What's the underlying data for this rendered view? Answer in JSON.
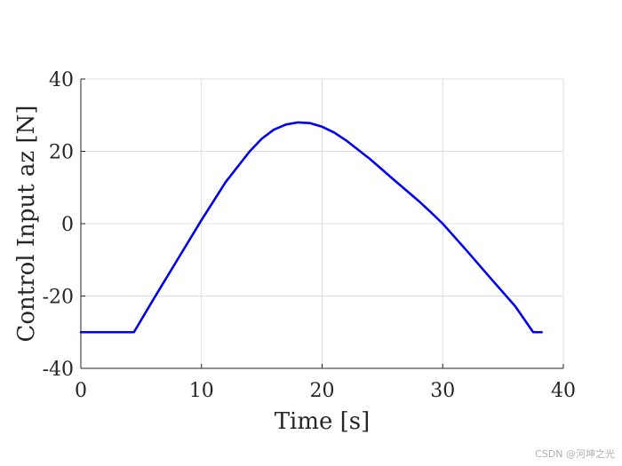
{
  "chart_data": {
    "type": "line",
    "xlabel": "Time [s]",
    "ylabel": "Control Input az [N]",
    "xlim": [
      0,
      40
    ],
    "ylim": [
      -40,
      40
    ],
    "xticks": [
      0,
      10,
      20,
      30,
      40
    ],
    "yticks": [
      -40,
      -20,
      0,
      20,
      40
    ],
    "grid": true,
    "series": [
      {
        "color": "#0000ee",
        "x": [
          0,
          4.4,
          6,
          8,
          10,
          12,
          14,
          15,
          16,
          17,
          18,
          19,
          20,
          21,
          22,
          24,
          26,
          28,
          29,
          30,
          32,
          34,
          36,
          37.5,
          38.2
        ],
        "y": [
          -30,
          -30,
          -21,
          -10,
          1,
          11.5,
          20,
          23.5,
          26,
          27.4,
          28,
          27.8,
          26.8,
          25.2,
          23,
          17.8,
          12,
          6.3,
          3.2,
          0,
          -7.5,
          -15.2,
          -22.8,
          -30,
          -30
        ]
      }
    ]
  },
  "watermark": "CSDN @河坤之光"
}
